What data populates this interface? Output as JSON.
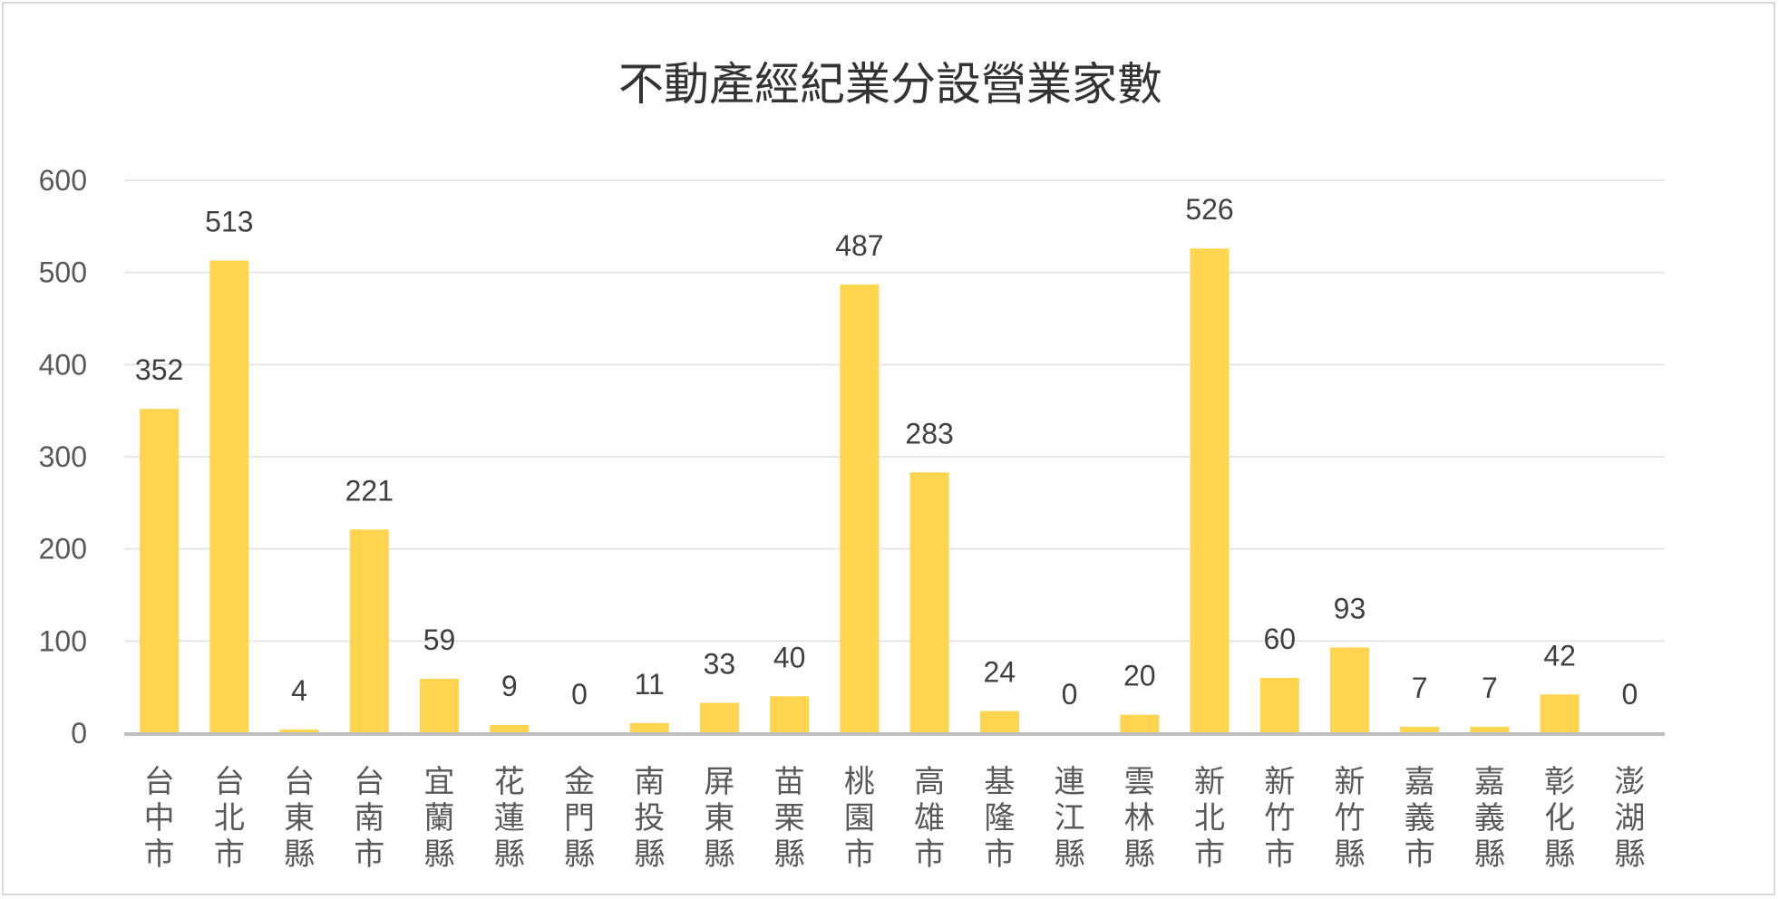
{
  "chart_data": {
    "type": "bar",
    "title": "不動產經紀業分設營業家數",
    "categories": [
      "台中市",
      "台北市",
      "台東縣",
      "台南市",
      "宜蘭縣",
      "花蓮縣",
      "金門縣",
      "南投縣",
      "屏東縣",
      "苗栗縣",
      "桃園市",
      "高雄市",
      "基隆市",
      "連江縣",
      "雲林縣",
      "新北市",
      "新竹市",
      "新竹縣",
      "嘉義市",
      "嘉義縣",
      "彰化縣",
      "澎湖縣"
    ],
    "values": [
      352,
      513,
      4,
      221,
      59,
      9,
      0,
      11,
      33,
      40,
      487,
      283,
      24,
      0,
      20,
      526,
      60,
      93,
      7,
      7,
      42,
      0
    ],
    "ylim": [
      0,
      600
    ],
    "yticks": [
      0,
      100,
      200,
      300,
      400,
      500,
      600
    ],
    "xlabel": "",
    "ylabel": "",
    "grid": true,
    "data_labels": true,
    "bar_color": "#FFD44F",
    "gridline_color": "#e6e6e6",
    "axis_color": "#bfbfbf"
  }
}
